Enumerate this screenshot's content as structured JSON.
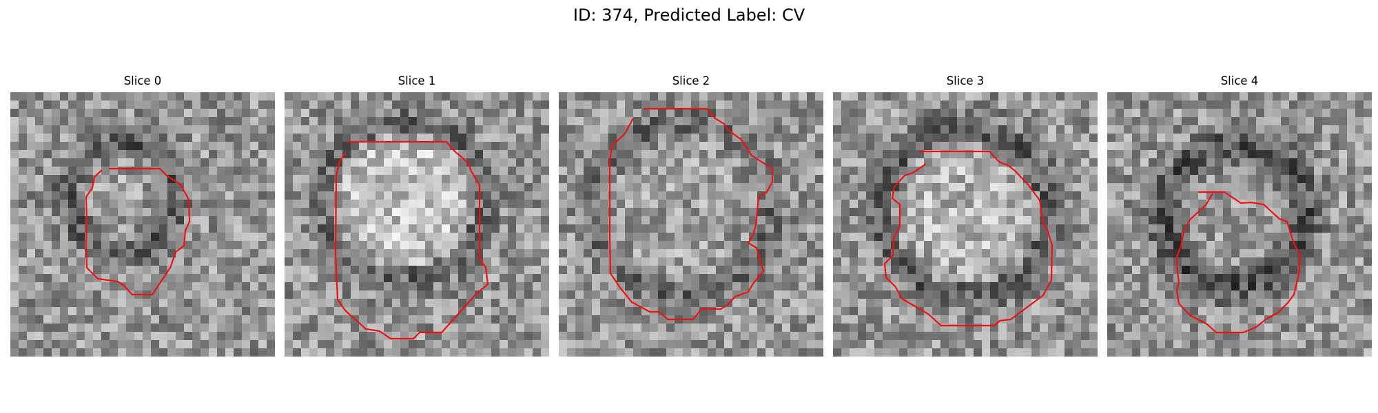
{
  "figure": {
    "title": "ID: 374, Predicted Label: CV"
  },
  "panels": [
    {
      "title": "Slice 0",
      "description": "grayscale noisy patch with a small round dark-ringed blob outlined in red",
      "seed": 11
    },
    {
      "title": "Slice 1",
      "description": "grayscale noisy patch with a bright round blob outlined in red",
      "seed": 23
    },
    {
      "title": "Slice 2",
      "description": "grayscale noisy patch with a large round region outlined in red",
      "seed": 37
    },
    {
      "title": "Slice 3",
      "description": "grayscale noisy patch with a bright round region and dark ring outlined in red",
      "seed": 41
    },
    {
      "title": "Slice 4",
      "description": "grayscale noisy patch with a dark ring around a mid-gray blob outlined in red",
      "seed": 53
    }
  ],
  "colors": {
    "contour": "#ee1111"
  }
}
